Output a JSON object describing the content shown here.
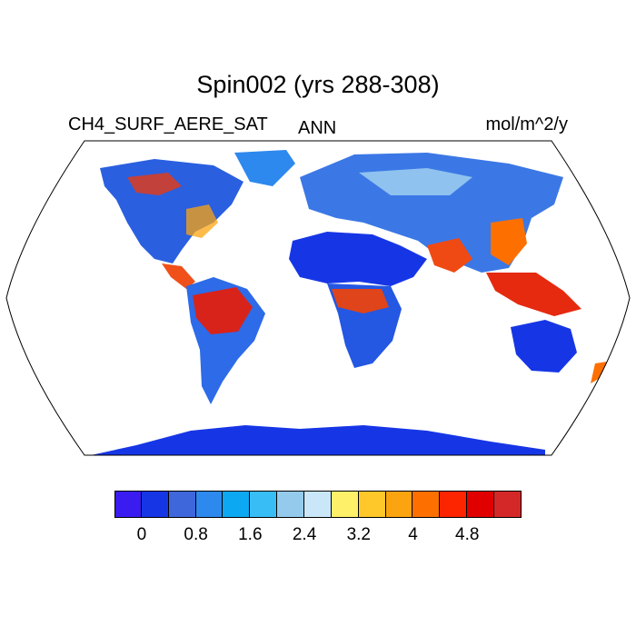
{
  "title": "Spin002 (yrs 288-308)",
  "variable_label": "CH4_SURF_AERE_SAT",
  "season_label": "ANN",
  "units_label": "mol/m^2/y",
  "colorbar": {
    "colors": [
      "#3a1cf0",
      "#1636e6",
      "#3f67dc",
      "#2d89ee",
      "#0da8f2",
      "#39bdf5",
      "#94cbec",
      "#c9e7f8",
      "#fff06a",
      "#fec72a",
      "#fca40f",
      "#fd7000",
      "#fd2400",
      "#e10000",
      "#d42828"
    ],
    "tick_labels": [
      "0",
      "0.8",
      "1.6",
      "2.4",
      "3.2",
      "4",
      "4.8"
    ]
  },
  "map": {
    "projection": "Robinson",
    "ocean_color": "#ffffff",
    "low_color": "#1636e6",
    "high_color": "#e10000"
  }
}
